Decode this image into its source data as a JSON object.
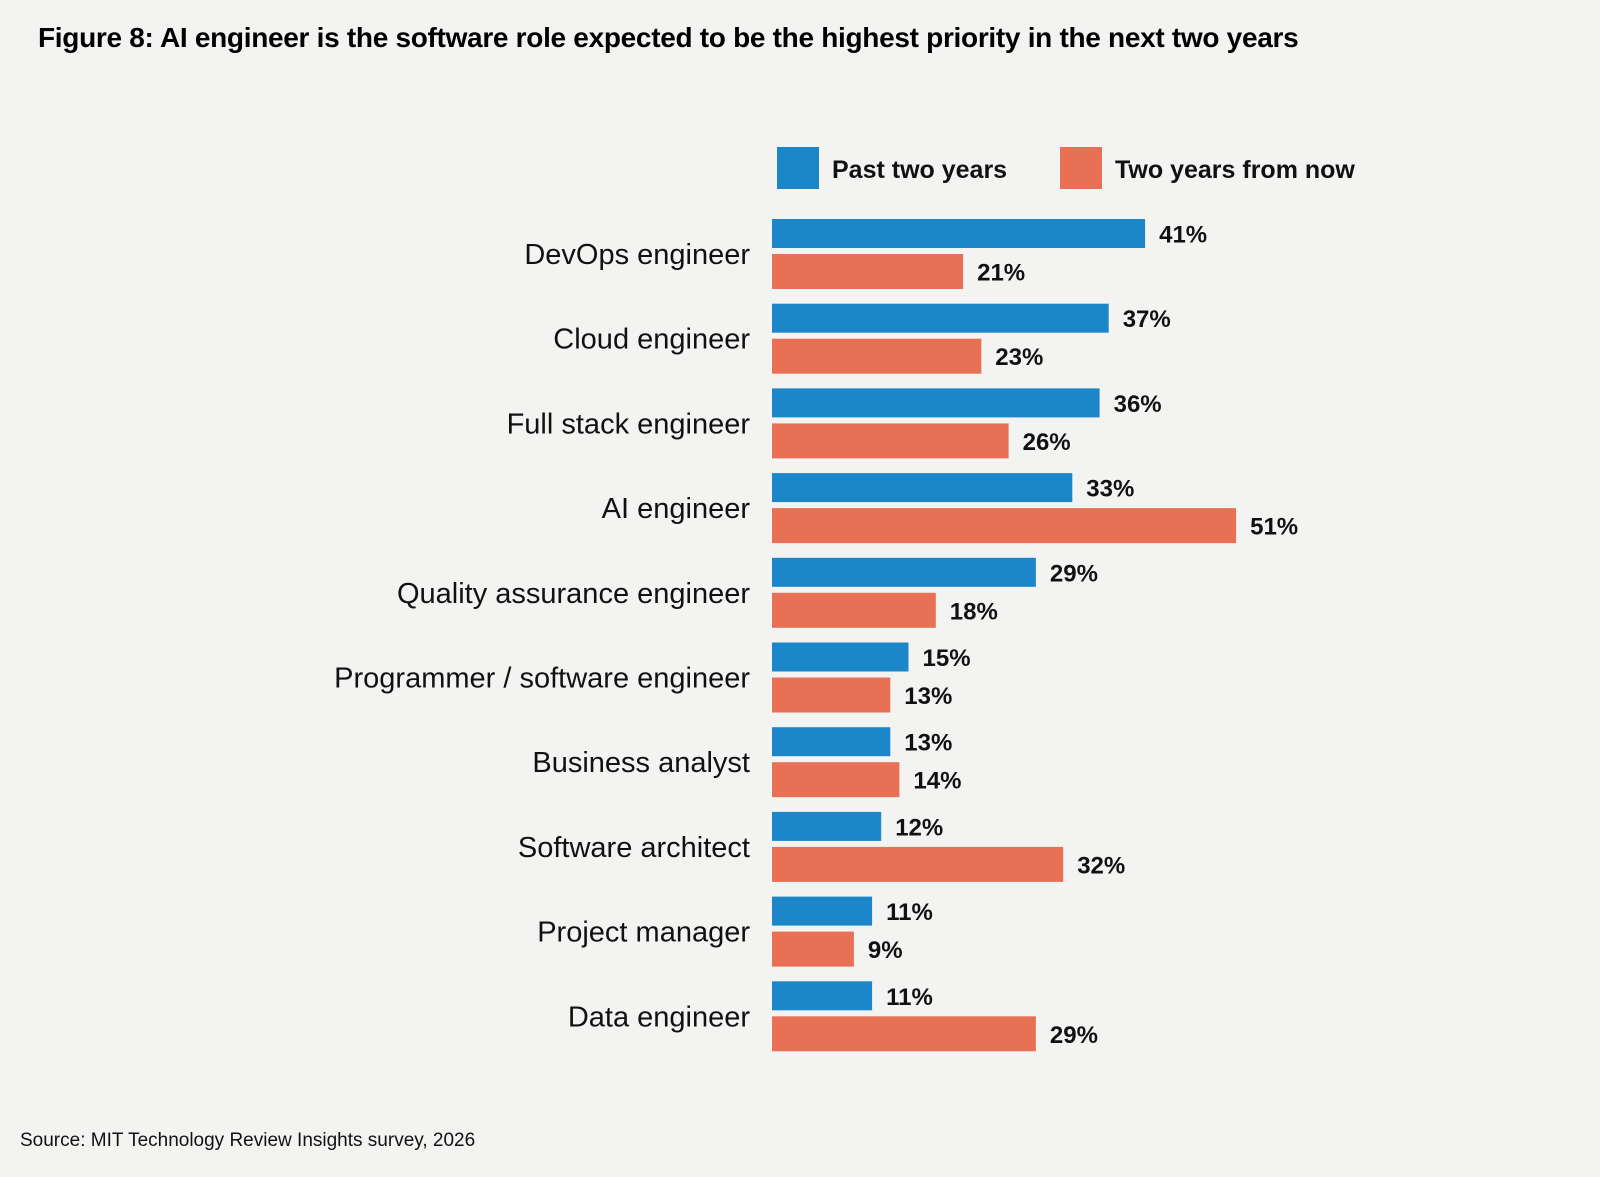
{
  "figure": {
    "title": "Figure 8: AI engineer is the software role expected to be the highest priority in the next two years",
    "source": "Source: MIT Technology Review Insights survey, 2026"
  },
  "chart_data": {
    "type": "bar",
    "orientation": "horizontal",
    "title": "Figure 8: AI engineer is the software role expected to be the highest priority in the next two years",
    "categories": [
      "DevOps engineer",
      "Cloud engineer",
      "Full stack engineer",
      "AI engineer",
      "Quality assurance engineer",
      "Programmer / software engineer",
      "Business analyst",
      "Software architect",
      "Project manager",
      "Data engineer"
    ],
    "series": [
      {
        "name": "Past two years",
        "color": "#1b87c9",
        "values": [
          41,
          37,
          36,
          33,
          29,
          15,
          13,
          12,
          11,
          11
        ],
        "labels": [
          "41%",
          "37%",
          "36%",
          "33%",
          "29%",
          "15%",
          "13%",
          "12%",
          "11%",
          "11%"
        ]
      },
      {
        "name": "Two years from now",
        "color": "#e87155",
        "values": [
          21,
          23,
          26,
          51,
          18,
          13,
          14,
          32,
          9,
          29
        ],
        "labels": [
          "21%",
          "23%",
          "26%",
          "51%",
          "18%",
          "13%",
          "14%",
          "32%",
          "9%",
          "29%"
        ]
      }
    ],
    "value_unit": "%",
    "xlim": [
      0,
      51
    ],
    "grid": false,
    "legend_position": "top"
  }
}
